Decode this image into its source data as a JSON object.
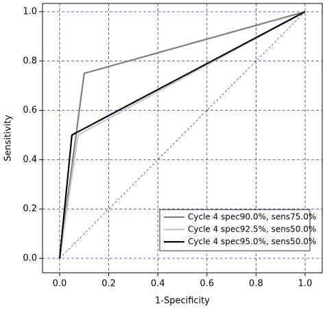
{
  "chart_data": {
    "type": "line",
    "xlabel": "1-Specificity",
    "ylabel": "Sensitivity",
    "xlim": [
      0,
      1
    ],
    "ylim": [
      0,
      1
    ],
    "xticks": [
      {
        "value": 0,
        "label": "0.0"
      },
      {
        "value": 0.2,
        "label": "0.2"
      },
      {
        "value": 0.4,
        "label": "0.4"
      },
      {
        "value": 0.6,
        "label": "0.6"
      },
      {
        "value": 0.8,
        "label": "0.8"
      },
      {
        "value": 1,
        "label": "1.0"
      }
    ],
    "yticks": [
      {
        "value": 0,
        "label": "0.0"
      },
      {
        "value": 0.2,
        "label": "0.2"
      },
      {
        "value": 0.4,
        "label": "0.4"
      },
      {
        "value": 0.6,
        "label": "0.6"
      },
      {
        "value": 0.8,
        "label": "0.8"
      },
      {
        "value": 1,
        "label": "1.0"
      }
    ],
    "grid": true,
    "grid_color": "#3333aa",
    "legend": "bottom-right",
    "series": [
      {
        "name": "Cycle 4 spec90.0%, sens75.0%",
        "color": "#808080",
        "x": [
          0,
          0.1,
          1
        ],
        "values": [
          0,
          0.75,
          1
        ]
      },
      {
        "name": "Cycle 4 spec92.5%, sens50.0%",
        "color": "#c8c8c8",
        "x": [
          0,
          0.075,
          1
        ],
        "values": [
          0,
          0.5,
          1
        ]
      },
      {
        "name": "Cycle 4 spec95.0%, sens50.0%",
        "color": "#000000",
        "x": [
          0,
          0.05,
          1
        ],
        "values": [
          0,
          0.5,
          1
        ]
      }
    ]
  }
}
